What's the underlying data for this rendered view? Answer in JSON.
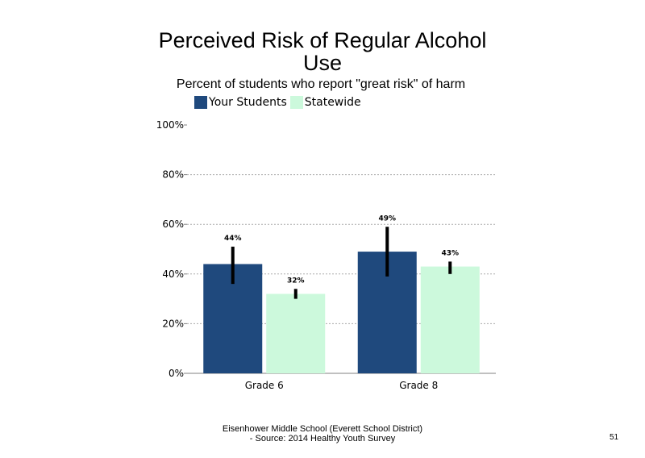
{
  "chart_data": {
    "type": "bar",
    "title": "Perceived Risk of Regular Alcohol Use",
    "subtitle": "Percent of students who report \"great risk\" of harm",
    "categories": [
      "Grade 6",
      "Grade 8"
    ],
    "series": [
      {
        "name": "Your Students",
        "color": "#1f497d",
        "values": [
          44,
          49
        ],
        "labels": [
          "44%",
          "49%"
        ],
        "error_low": [
          36,
          39
        ],
        "error_high": [
          51,
          59
        ]
      },
      {
        "name": "Statewide",
        "color": "#ccf9dc",
        "values": [
          32,
          43
        ],
        "labels": [
          "32%",
          "43%"
        ],
        "error_low": [
          30,
          40
        ],
        "error_high": [
          34,
          45
        ]
      }
    ],
    "ylim": [
      0,
      100
    ],
    "yticks": [
      0,
      20,
      40,
      60,
      80,
      100
    ],
    "ytick_labels": [
      "0%",
      "20%",
      "40%",
      "60%",
      "80%",
      "100%"
    ],
    "gridlines": "dotted",
    "legend_position": "top-left"
  },
  "footer": {
    "line1": "Eisenhower Middle School (Everett School District)",
    "line2": "- Source: 2014 Healthy Youth Survey"
  },
  "page_number": "51"
}
